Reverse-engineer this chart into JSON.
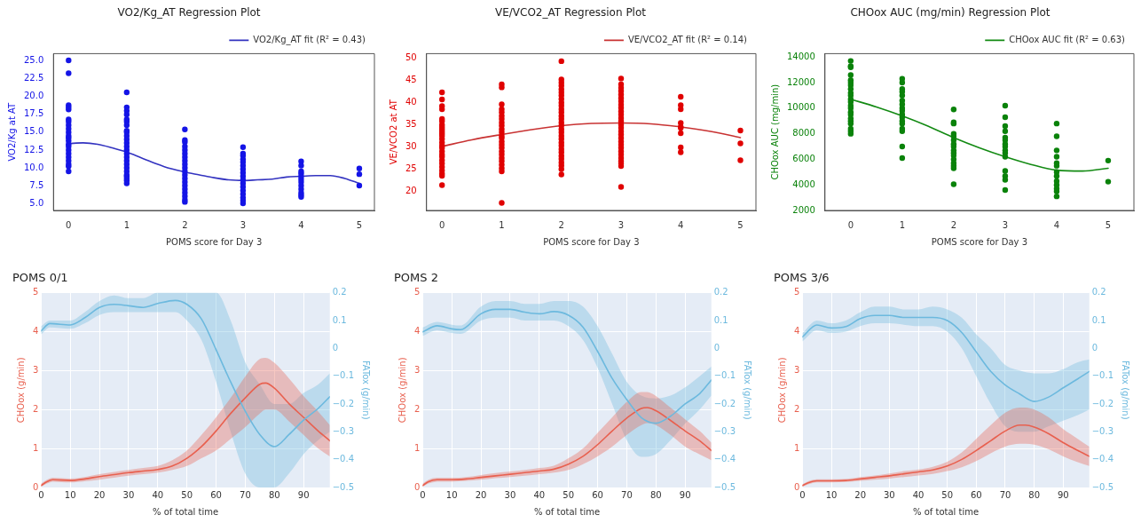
{
  "chart_data": [
    {
      "type": "scatter",
      "title": "VO2/Kg_AT Regression Plot",
      "xlabel": "POMS score for Day 3",
      "ylabel": "VO2/Kg at AT",
      "xlim": [
        -0.26,
        5.26
      ],
      "xticks": [
        0,
        1,
        2,
        3,
        4,
        5
      ],
      "ylim": [
        4.0,
        26.05
      ],
      "yticks": [
        {
          "value": 5,
          "label": "5.0"
        },
        {
          "value": 7.5,
          "label": "7.5"
        },
        {
          "value": 10,
          "label": "10.0"
        },
        {
          "value": 12.5,
          "label": "12.5"
        },
        {
          "value": 15,
          "label": "15.0"
        },
        {
          "value": 17.5,
          "label": "17.5"
        },
        {
          "value": 20,
          "label": "20.0"
        },
        {
          "value": 22.5,
          "label": "22.5"
        },
        {
          "value": 25,
          "label": "25.0"
        }
      ],
      "grid": false,
      "legend": "top right",
      "series": [
        {
          "color": "#1414e6",
          "marker": "circle",
          "x": [
            0,
            0,
            0,
            0,
            0,
            0,
            0,
            0,
            0,
            0,
            0,
            0,
            0,
            0,
            0,
            0,
            0,
            0,
            0,
            0,
            0,
            0,
            1,
            1,
            1,
            1,
            1,
            1,
            1,
            1,
            1,
            1,
            1,
            1,
            1,
            1,
            1,
            1,
            1,
            1,
            1,
            1,
            1,
            1,
            1,
            1,
            1,
            2,
            2,
            2,
            2,
            2,
            2,
            2,
            2,
            2,
            2,
            2,
            2,
            2,
            2,
            2,
            2,
            2,
            2,
            2,
            2,
            3,
            3,
            3,
            3,
            3,
            3,
            3,
            3,
            3,
            3,
            3,
            3,
            3,
            3,
            3,
            3,
            3,
            4,
            4,
            4,
            4,
            4,
            4,
            4,
            4,
            4,
            4,
            4,
            4,
            5,
            5,
            5
          ],
          "values": [
            25.1,
            23.3,
            18.8,
            18.5,
            18.2,
            16.8,
            16.5,
            16.0,
            15.5,
            15.0,
            14.5,
            14.2,
            13.8,
            13.3,
            13.0,
            12.5,
            12.0,
            11.5,
            11.0,
            10.5,
            10.2,
            9.5,
            20.6,
            18.5,
            18.0,
            17.5,
            16.8,
            16.5,
            16.0,
            15.2,
            15.0,
            14.5,
            14.0,
            13.5,
            13.0,
            12.5,
            12.0,
            11.5,
            11.0,
            10.5,
            10.0,
            9.5,
            9.0,
            8.8,
            8.5,
            8.2,
            7.8,
            15.4,
            13.9,
            13.6,
            13.0,
            12.5,
            12.0,
            11.5,
            11.0,
            10.5,
            10.0,
            9.5,
            9.0,
            8.5,
            8.0,
            7.5,
            7.0,
            6.5,
            6.0,
            5.5,
            5.2,
            12.9,
            12.0,
            11.7,
            11.2,
            10.8,
            10.3,
            9.8,
            9.3,
            8.8,
            8.3,
            7.8,
            7.3,
            6.8,
            6.3,
            5.8,
            5.4,
            5.0,
            10.9,
            10.3,
            9.5,
            9.2,
            8.8,
            8.4,
            8.0,
            7.5,
            7.0,
            6.5,
            6.2,
            5.9,
            9.9,
            9.1,
            7.5
          ]
        },
        {
          "type": "line",
          "name": "VO2/Kg_AT fit (R² = 0.43)",
          "color": "#3333c0",
          "marker": "none",
          "x": [
            0,
            0.25,
            0.5,
            0.75,
            1,
            1.25,
            1.5,
            1.75,
            2,
            2.25,
            2.5,
            2.75,
            3,
            3.25,
            3.5,
            3.75,
            4,
            4.25,
            4.5,
            4.75,
            5
          ],
          "values": [
            13.4,
            13.5,
            13.3,
            12.8,
            12.2,
            11.4,
            10.6,
            9.9,
            9.4,
            9.0,
            8.6,
            8.3,
            8.2,
            8.3,
            8.4,
            8.7,
            8.8,
            8.9,
            8.9,
            8.5,
            7.8
          ]
        }
      ]
    },
    {
      "type": "scatter",
      "title": "VE/VCO2_AT Regression Plot",
      "xlabel": "POMS score for Day 3",
      "ylabel": "VE/VCO2 at AT",
      "xlim": [
        -0.26,
        5.26
      ],
      "xticks": [
        0,
        1,
        2,
        3,
        4,
        5
      ],
      "ylim": [
        15.7,
        51
      ],
      "yticks": [
        20,
        25,
        30,
        35,
        40,
        45,
        50
      ],
      "grid": false,
      "legend": "top right",
      "series": [
        {
          "color": "#e00000",
          "marker": "circle",
          "x": [
            0,
            0,
            0,
            0,
            0,
            0,
            0,
            0,
            0,
            0,
            0,
            0,
            0,
            0,
            0,
            0,
            0,
            0,
            0,
            0,
            0,
            0,
            0,
            0,
            0,
            0,
            1,
            1,
            1,
            1,
            1,
            1,
            1,
            1,
            1,
            1,
            1,
            1,
            1,
            1,
            1,
            1,
            1,
            1,
            1,
            1,
            1,
            1,
            1,
            1,
            2,
            2,
            2,
            2,
            2,
            2,
            2,
            2,
            2,
            2,
            2,
            2,
            2,
            2,
            2,
            2,
            2,
            2,
            2,
            2,
            2,
            2,
            2,
            2,
            2,
            2,
            2,
            2,
            2,
            2,
            3,
            3,
            3,
            3,
            3,
            3,
            3,
            3,
            3,
            3,
            3,
            3,
            3,
            3,
            3,
            3,
            3,
            3,
            3,
            3,
            3,
            3,
            3,
            3,
            3,
            3,
            3,
            3,
            4,
            4,
            4,
            4,
            4,
            4,
            4,
            4,
            4,
            5,
            5,
            5
          ],
          "values": [
            42.3,
            40.7,
            39.2,
            38.5,
            36.3,
            35.8,
            35.0,
            34.5,
            34.0,
            33.5,
            33.0,
            32.5,
            31.8,
            31.0,
            30.3,
            29.8,
            29.0,
            28.3,
            27.8,
            27.0,
            26.3,
            25.5,
            24.7,
            24.0,
            23.5,
            21.4,
            44.1,
            43.4,
            39.6,
            38.5,
            37.8,
            37.0,
            36.3,
            35.5,
            34.8,
            34.0,
            33.3,
            32.5,
            32.0,
            31.2,
            30.5,
            29.8,
            29.0,
            28.3,
            27.5,
            26.8,
            26.0,
            25.2,
            24.5,
            17.4,
            49.3,
            45.2,
            44.5,
            43.8,
            43.0,
            42.3,
            41.6,
            40.8,
            40.0,
            39.3,
            38.5,
            37.8,
            37.0,
            36.3,
            35.5,
            34.8,
            34.0,
            33.3,
            32.5,
            31.8,
            31.0,
            30.3,
            29.5,
            28.8,
            28.0,
            27.3,
            26.5,
            25.8,
            25.0,
            23.8,
            45.4,
            44.1,
            43.3,
            42.6,
            41.8,
            41.0,
            40.3,
            39.5,
            38.8,
            38.0,
            37.3,
            36.5,
            35.8,
            35.0,
            34.3,
            33.5,
            32.8,
            32.0,
            31.2,
            30.5,
            29.8,
            29.0,
            28.3,
            27.5,
            26.8,
            26.3,
            25.7,
            21.0,
            41.3,
            39.4,
            38.5,
            35.4,
            34.5,
            34.3,
            33.1,
            29.9,
            28.8,
            33.7,
            30.8,
            27.0
          ]
        },
        {
          "type": "line",
          "name": "VE/VCO2_AT fit (R² = 0.14)",
          "color": "#c83232",
          "marker": "none",
          "x": [
            0,
            0.5,
            1,
            1.5,
            2,
            2.5,
            3,
            3.5,
            4,
            4.5,
            5
          ],
          "values": [
            30.1,
            31.6,
            32.8,
            33.9,
            34.8,
            35.3,
            35.4,
            35.2,
            34.5,
            33.5,
            32.1
          ]
        }
      ]
    },
    {
      "type": "scatter",
      "title": "CHOox AUC (mg/min) Regression Plot",
      "xlabel": "POMS score for Day 3",
      "ylabel": "CHOox AUC (mg/min)",
      "xlim": [
        -0.5,
        5.5
      ],
      "xticks": [
        0,
        1,
        2,
        3,
        4,
        5
      ],
      "ylim": [
        2000,
        14270
      ],
      "yticks": [
        2000,
        4000,
        6000,
        8000,
        10000,
        12000,
        14000
      ],
      "grid": false,
      "legend": "top right",
      "series": [
        {
          "color": "#0a820a",
          "marker": "circle",
          "x": [
            0,
            0,
            0,
            0,
            0,
            0,
            0,
            0,
            0,
            0,
            0,
            0,
            0,
            0,
            0,
            0,
            0,
            0,
            0,
            0,
            0,
            0,
            1,
            1,
            1,
            1,
            1,
            1,
            1,
            1,
            1,
            1,
            1,
            1,
            1,
            1,
            1,
            1,
            1,
            2,
            2,
            2,
            2,
            2,
            2,
            2,
            2,
            2,
            2,
            2,
            2,
            2,
            2,
            2,
            2,
            3,
            3,
            3,
            3,
            3,
            3,
            3,
            3,
            3,
            3,
            3,
            3,
            3,
            3,
            3,
            4,
            4,
            4,
            4,
            4,
            4,
            4,
            4,
            4,
            4,
            4,
            4,
            4,
            5,
            5
          ],
          "values": [
            13700,
            13300,
            13200,
            12600,
            12200,
            12000,
            11800,
            11500,
            11200,
            11000,
            10700,
            10500,
            10200,
            10000,
            9700,
            9500,
            9200,
            9000,
            8800,
            8400,
            8200,
            8000,
            12300,
            12000,
            11500,
            11300,
            11000,
            10600,
            10300,
            10000,
            9800,
            9500,
            9300,
            9000,
            8800,
            8400,
            8200,
            7000,
            6100,
            9900,
            8900,
            8800,
            8000,
            7800,
            7500,
            7200,
            7000,
            6700,
            6500,
            6300,
            6000,
            5700,
            5500,
            5300,
            4050,
            10200,
            9300,
            8600,
            8200,
            7700,
            7500,
            7200,
            7000,
            6700,
            6500,
            6200,
            5100,
            4700,
            4400,
            3600,
            8800,
            7800,
            6700,
            6200,
            5700,
            5500,
            5000,
            4700,
            4300,
            4000,
            3700,
            3500,
            3100,
            5900,
            4250
          ]
        },
        {
          "type": "line",
          "name": "CHOox AUC fit (R² = 0.63)",
          "color": "#138a13",
          "marker": "none",
          "x": [
            0,
            0.5,
            1,
            1.5,
            2,
            2.5,
            3,
            3.5,
            4,
            4.5,
            5
          ],
          "values": [
            10700,
            10100,
            9400,
            8600,
            7700,
            6900,
            6200,
            5600,
            5150,
            5080,
            5300
          ]
        }
      ]
    },
    {
      "type": "line",
      "title": "POMS 0/1",
      "xlabel": "% of total time",
      "ylabel": "CHOox (g/min)",
      "y2label": "FATox (g/min)",
      "xlim": [
        0,
        99
      ],
      "xticks": [
        0,
        10,
        20,
        30,
        40,
        50,
        60,
        70,
        80,
        90
      ],
      "ylim": [
        0,
        5
      ],
      "yticks": [
        0,
        1,
        2,
        3,
        4,
        5
      ],
      "y2lim": [
        -0.5,
        0.2
      ],
      "y2ticks": [
        {
          "value": -0.5,
          "label": "−0.5"
        },
        {
          "value": -0.4,
          "label": "−0.4"
        },
        {
          "value": -0.3,
          "label": "−0.3"
        },
        {
          "value": -0.2,
          "label": "−0.2"
        },
        {
          "value": -0.1,
          "label": "−0.1"
        },
        0,
        0.1,
        0.2
      ],
      "grid": true,
      "legend": false,
      "series": [
        {
          "type": "line",
          "color": "#e8604f",
          "marker": "none",
          "x": [
            0,
            2,
            4,
            10,
            15,
            20,
            25,
            30,
            35,
            40,
            45,
            50,
            55,
            60,
            65,
            70,
            75,
            77,
            80,
            85,
            90,
            95,
            99
          ],
          "values": [
            0.05,
            0.15,
            0.2,
            0.18,
            0.22,
            0.28,
            0.33,
            0.38,
            0.42,
            0.46,
            0.55,
            0.75,
            1.05,
            1.45,
            1.9,
            2.3,
            2.65,
            2.68,
            2.55,
            2.15,
            1.8,
            1.45,
            1.2
          ],
          "lower": [
            0.02,
            0.1,
            0.15,
            0.13,
            0.16,
            0.2,
            0.25,
            0.3,
            0.34,
            0.38,
            0.45,
            0.55,
            0.75,
            0.95,
            1.25,
            1.55,
            1.9,
            2.0,
            2.0,
            1.7,
            1.35,
            1.0,
            0.8
          ],
          "upper": [
            0.1,
            0.2,
            0.25,
            0.23,
            0.27,
            0.34,
            0.4,
            0.45,
            0.5,
            0.55,
            0.7,
            0.95,
            1.35,
            1.8,
            2.3,
            2.85,
            3.3,
            3.33,
            3.2,
            2.8,
            2.35,
            1.95,
            1.6
          ]
        },
        {
          "type": "line",
          "axis": "y2",
          "color": "#6cb9de",
          "marker": "none",
          "x": [
            0,
            3,
            10,
            15,
            20,
            25,
            30,
            35,
            40,
            46,
            50,
            55,
            60,
            65,
            70,
            75,
            80,
            85,
            90,
            95,
            99
          ],
          "values": [
            0.063,
            0.089,
            0.084,
            0.11,
            0.147,
            0.158,
            0.153,
            0.147,
            0.161,
            0.172,
            0.158,
            0.105,
            -0.005,
            -0.121,
            -0.226,
            -0.31,
            -0.353,
            -0.31,
            -0.258,
            -0.216,
            -0.174
          ],
          "lower": [
            0.05,
            0.075,
            0.07,
            0.09,
            0.12,
            0.13,
            0.13,
            0.13,
            0.13,
            0.13,
            0.1,
            0.03,
            -0.12,
            -0.3,
            -0.45,
            -0.5,
            -0.5,
            -0.45,
            -0.38,
            -0.33,
            -0.3
          ],
          "upper": [
            0.08,
            0.1,
            0.1,
            0.13,
            0.17,
            0.19,
            0.18,
            0.18,
            0.2,
            0.2,
            0.2,
            0.2,
            0.2,
            0.1,
            -0.05,
            -0.13,
            -0.2,
            -0.2,
            -0.16,
            -0.13,
            -0.09
          ]
        }
      ]
    },
    {
      "type": "line",
      "title": "POMS 2",
      "xlabel": "% of total time",
      "ylabel": "CHOox (g/min)",
      "y2label": "FATox (g/min)",
      "xlim": [
        0,
        99
      ],
      "xticks": [
        0,
        10,
        20,
        30,
        40,
        50,
        60,
        70,
        80,
        90
      ],
      "ylim": [
        0,
        5
      ],
      "yticks": [
        0,
        1,
        2,
        3,
        4,
        5
      ],
      "y2lim": [
        -0.5,
        0.2
      ],
      "y2ticks": [
        {
          "value": -0.5,
          "label": "−0.5"
        },
        {
          "value": -0.4,
          "label": "−0.4"
        },
        {
          "value": -0.3,
          "label": "−0.3"
        },
        {
          "value": -0.2,
          "label": "−0.2"
        },
        {
          "value": -0.1,
          "label": "−0.1"
        },
        0,
        0.1,
        0.2
      ],
      "grid": true,
      "legend": false,
      "series": [
        {
          "type": "line",
          "color": "#e8604f",
          "marker": "none",
          "x": [
            0,
            2,
            5,
            10,
            15,
            20,
            25,
            30,
            35,
            40,
            45,
            50,
            55,
            60,
            65,
            70,
            75,
            77,
            80,
            85,
            90,
            95,
            99
          ],
          "values": [
            0.05,
            0.15,
            0.2,
            0.2,
            0.22,
            0.26,
            0.3,
            0.34,
            0.38,
            0.42,
            0.47,
            0.6,
            0.8,
            1.1,
            1.45,
            1.78,
            2.03,
            2.05,
            1.97,
            1.72,
            1.45,
            1.2,
            0.95
          ],
          "lower": [
            0.02,
            0.1,
            0.15,
            0.15,
            0.17,
            0.2,
            0.24,
            0.27,
            0.3,
            0.34,
            0.38,
            0.45,
            0.6,
            0.8,
            1.05,
            1.35,
            1.6,
            1.65,
            1.6,
            1.35,
            1.05,
            0.85,
            0.7
          ],
          "upper": [
            0.1,
            0.2,
            0.25,
            0.25,
            0.27,
            0.32,
            0.37,
            0.41,
            0.45,
            0.5,
            0.56,
            0.75,
            1.0,
            1.4,
            1.8,
            2.2,
            2.45,
            2.45,
            2.35,
            2.05,
            1.75,
            1.45,
            1.15
          ]
        },
        {
          "type": "line",
          "axis": "y2",
          "color": "#6cb9de",
          "marker": "none",
          "x": [
            0,
            5,
            10,
            13,
            20,
            25,
            30,
            35,
            40,
            45,
            50,
            55,
            60,
            65,
            70,
            75,
            80,
            85,
            90,
            95,
            99
          ],
          "values": [
            0.059,
            0.081,
            0.07,
            0.067,
            0.124,
            0.14,
            0.14,
            0.13,
            0.124,
            0.132,
            0.119,
            0.076,
            -0.011,
            -0.108,
            -0.184,
            -0.249,
            -0.269,
            -0.244,
            -0.2,
            -0.163,
            -0.114
          ],
          "lower": [
            0.045,
            0.065,
            0.055,
            0.052,
            0.1,
            0.11,
            0.11,
            0.1,
            0.1,
            0.1,
            0.08,
            0.03,
            -0.07,
            -0.2,
            -0.33,
            -0.39,
            -0.38,
            -0.33,
            -0.27,
            -0.22,
            -0.17
          ],
          "upper": [
            0.075,
            0.095,
            0.085,
            0.082,
            0.15,
            0.17,
            0.17,
            0.16,
            0.16,
            0.17,
            0.17,
            0.15,
            0.08,
            -0.02,
            -0.12,
            -0.17,
            -0.18,
            -0.17,
            -0.14,
            -0.1,
            -0.065
          ]
        }
      ]
    },
    {
      "type": "line",
      "title": "POMS 3/6",
      "xlabel": "% of total time",
      "ylabel": "CHOox (g/min)",
      "y2label": "FATox (g/min)",
      "xlim": [
        0,
        99
      ],
      "xticks": [
        0,
        10,
        20,
        30,
        40,
        50,
        60,
        70,
        80,
        90
      ],
      "ylim": [
        0,
        5
      ],
      "yticks": [
        0,
        1,
        2,
        3,
        4,
        5
      ],
      "y2lim": [
        -0.5,
        0.2
      ],
      "y2ticks": [
        {
          "value": -0.5,
          "label": "−0.5"
        },
        {
          "value": -0.4,
          "label": "−0.4"
        },
        {
          "value": -0.3,
          "label": "−0.3"
        },
        {
          "value": -0.2,
          "label": "−0.2"
        },
        {
          "value": -0.1,
          "label": "−0.1"
        },
        0,
        0.1,
        0.2
      ],
      "grid": true,
      "legend": false,
      "series": [
        {
          "type": "line",
          "color": "#e8604f",
          "marker": "none",
          "x": [
            0,
            2,
            5,
            10,
            15,
            20,
            25,
            30,
            35,
            40,
            45,
            50,
            55,
            60,
            65,
            70,
            75,
            77,
            80,
            85,
            90,
            95,
            99
          ],
          "values": [
            0.05,
            0.12,
            0.17,
            0.17,
            0.18,
            0.22,
            0.26,
            0.3,
            0.35,
            0.4,
            0.45,
            0.55,
            0.72,
            0.95,
            1.2,
            1.45,
            1.6,
            1.6,
            1.55,
            1.38,
            1.15,
            0.95,
            0.8
          ],
          "lower": [
            0.02,
            0.08,
            0.13,
            0.13,
            0.14,
            0.17,
            0.2,
            0.23,
            0.27,
            0.31,
            0.35,
            0.42,
            0.52,
            0.68,
            0.88,
            1.05,
            1.12,
            1.12,
            1.1,
            0.98,
            0.8,
            0.65,
            0.55
          ],
          "upper": [
            0.08,
            0.16,
            0.21,
            0.21,
            0.22,
            0.27,
            0.31,
            0.36,
            0.42,
            0.46,
            0.53,
            0.66,
            0.9,
            1.25,
            1.6,
            1.92,
            2.05,
            2.05,
            2.0,
            1.8,
            1.5,
            1.25,
            1.05
          ]
        },
        {
          "type": "line",
          "axis": "y2",
          "color": "#6cb9de",
          "marker": "none",
          "x": [
            0,
            5,
            10,
            15,
            20,
            25,
            30,
            35,
            40,
            45,
            50,
            55,
            60,
            65,
            70,
            75,
            80,
            85,
            90,
            95,
            99
          ],
          "values": [
            0.041,
            0.084,
            0.073,
            0.078,
            0.107,
            0.118,
            0.118,
            0.111,
            0.111,
            0.111,
            0.1,
            0.057,
            -0.013,
            -0.083,
            -0.132,
            -0.164,
            -0.191,
            -0.175,
            -0.142,
            -0.11,
            -0.083
          ],
          "lower": [
            0.025,
            0.065,
            0.055,
            0.06,
            0.08,
            0.09,
            0.09,
            0.085,
            0.08,
            0.08,
            0.06,
            0.0,
            -0.1,
            -0.2,
            -0.28,
            -0.3,
            -0.3,
            -0.28,
            -0.26,
            -0.24,
            -0.22
          ],
          "upper": [
            0.055,
            0.1,
            0.09,
            0.1,
            0.13,
            0.15,
            0.15,
            0.14,
            0.14,
            0.15,
            0.14,
            0.11,
            0.05,
            0.0,
            -0.06,
            -0.08,
            -0.09,
            -0.09,
            -0.075,
            -0.05,
            -0.04
          ]
        }
      ]
    }
  ]
}
